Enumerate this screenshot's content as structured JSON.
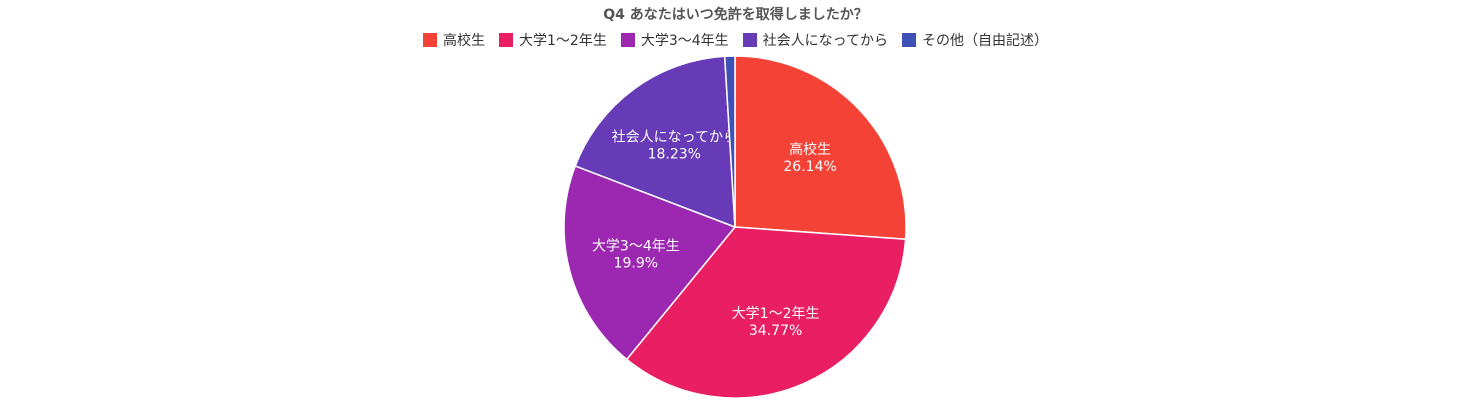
{
  "chart_data": {
    "type": "pie",
    "title": "Q4 あなたはいつ免許を取得しましたか？",
    "legend_position": "top",
    "categories": [
      "高校生",
      "大学1〜2年生",
      "大学3〜4年生",
      "社会人になってから",
      "その他（自由記述）"
    ],
    "values": [
      26.14,
      34.77,
      19.9,
      18.23,
      0.96
    ],
    "value_labels": [
      "26.14%",
      "34.77%",
      "19.9%",
      "18.23%",
      ""
    ],
    "colors": [
      "#f44336",
      "#e91e63",
      "#9c27b0",
      "#673ab7",
      "#3f51b5"
    ],
    "start_angle_deg": 0,
    "direction": "clockwise"
  }
}
